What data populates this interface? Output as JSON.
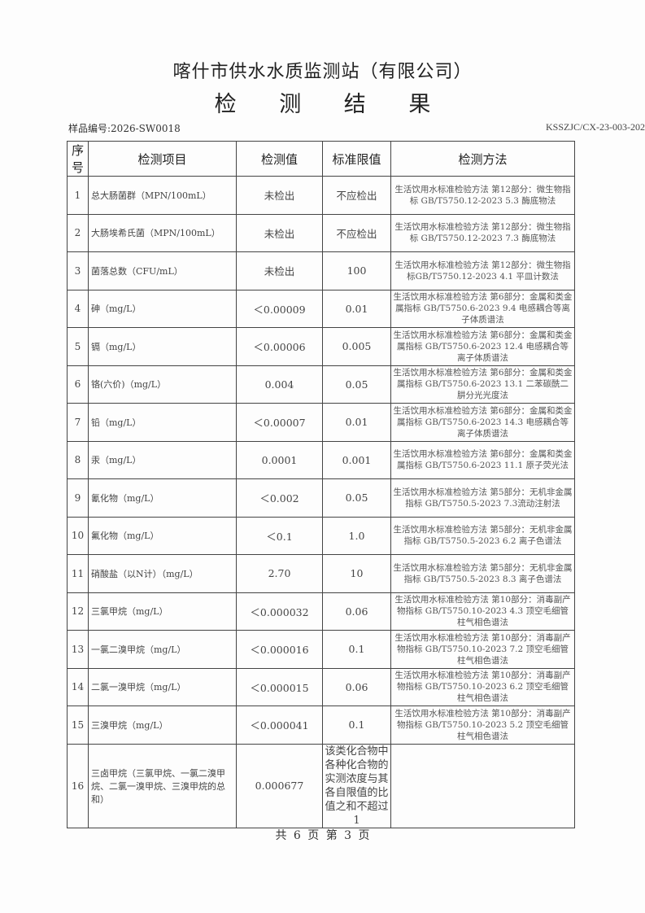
{
  "header": {
    "title": "喀什市供水水质监测站（有限公司）",
    "subtitle": "检 测 结 果",
    "sample_no": "样品编号:2026-SW0018",
    "doc_code": "KSSZJC/CX-23-003-202"
  },
  "table": {
    "columns": [
      "序号",
      "检测项目",
      "检测值",
      "标准限值",
      "检测方法"
    ],
    "rows": [
      {
        "seq": "1",
        "item": "总大肠菌群（MPN/100mL）",
        "value": "未检出",
        "limit": "不应检出",
        "method": "生活饮用水标准检验方法 第12部分：微生物指标 GB/T5750.12-2023 5.3 酶底物法"
      },
      {
        "seq": "2",
        "item": "大肠埃希氏菌（MPN/100mL）",
        "value": "未检出",
        "limit": "不应检出",
        "method": "生活饮用水标准检验方法 第12部分：微生物指标 GB/T5750.12-2023 7.3 酶底物法"
      },
      {
        "seq": "3",
        "item": "菌落总数（CFU/mL）",
        "value": "未检出",
        "limit": "100",
        "method": "生活饮用水标准检验方法 第12部分：微生物指标GB/T5750.12-2023 4.1 平皿计数法"
      },
      {
        "seq": "4",
        "item": "砷（mg/L）",
        "value": "＜0.00009",
        "limit": "0.01",
        "method": "生活饮用水标准检验方法 第6部分：金属和类金属指标 GB/T5750.6-2023 9.4 电感耦合等离子体质谱法"
      },
      {
        "seq": "5",
        "item": "镉（mg/L）",
        "value": "＜0.00006",
        "limit": "0.005",
        "method": "生活饮用水标准检验方法 第6部分：金属和类金属指标 GB/T5750.6-2023 12.4 电感耦合等离子体质谱法"
      },
      {
        "seq": "6",
        "item": "铬(六价)（mg/L）",
        "value": "0.004",
        "limit": "0.05",
        "method": "生活饮用水标准检验方法 第6部分：金属和类金属指标 GB/T5750.6-2023 13.1 二苯碳酰二肼分光光度法"
      },
      {
        "seq": "7",
        "item": "铅（mg/L）",
        "value": "＜0.00007",
        "limit": "0.01",
        "method": "生活饮用水标准检验方法 第6部分：金属和类金属指标 GB/T5750.6-2023 14.3 电感耦合等离子体质谱法"
      },
      {
        "seq": "8",
        "item": "汞（mg/L）",
        "value": "0.0001",
        "limit": "0.001",
        "method": "生活饮用水标准检验方法 第6部分：金属和类金属指标 GB/T5750.6-2023 11.1 原子荧光法"
      },
      {
        "seq": "9",
        "item": "氰化物（mg/L）",
        "value": "＜0.002",
        "limit": "0.05",
        "method": "生活饮用水标准检验方法 第5部分：无机非金属指标 GB/T5750.5-2023 7.3流动注射法"
      },
      {
        "seq": "10",
        "item": "氟化物（mg/L）",
        "value": "＜0.1",
        "limit": "1.0",
        "method": "生活饮用水标准检验方法 第5部分：无机非金属指标 GB/T5750.5-2023 6.2 离子色谱法"
      },
      {
        "seq": "11",
        "item": "硝酸盐（以N计）（mg/L）",
        "value": "2.70",
        "limit": "10",
        "method": "生活饮用水标准检验方法 第5部分：无机非金属指标 GB/T5750.5-2023 8.3 离子色谱法"
      },
      {
        "seq": "12",
        "item": "三氯甲烷（mg/L）",
        "value": "＜0.000032",
        "limit": "0.06",
        "method": "生活饮用水标准检验方法 第10部分：消毒副产物指标 GB/T5750.10-2023 4.3 顶空毛细管柱气相色谱法"
      },
      {
        "seq": "13",
        "item": "一氯二溴甲烷（mg/L）",
        "value": "＜0.000016",
        "limit": "0.1",
        "method": "生活饮用水标准检验方法 第10部分：消毒副产物指标 GB/T5750.10-2023 7.2 顶空毛细管柱气相色谱法"
      },
      {
        "seq": "14",
        "item": "二氯一溴甲烷（mg/L）",
        "value": "＜0.000015",
        "limit": "0.06",
        "method": "生活饮用水标准检验方法 第10部分：消毒副产物指标 GB/T5750.10-2023 6.2 顶空毛细管柱气相色谱法"
      },
      {
        "seq": "15",
        "item": "三溴甲烷（mg/L）",
        "value": "＜0.000041",
        "limit": "0.1",
        "method": "生活饮用水标准检验方法 第10部分：消毒副产物指标 GB/T5750.10-2023 5.2 顶空毛细管柱气相色谱法"
      },
      {
        "seq": "16",
        "item": "三卤甲烷（三氯甲烷、一氯二溴甲烷、二氯一溴甲烷、三溴甲烷的总和）",
        "value": "0.000677",
        "limit": "该类化合物中各种化合物的实测浓度与其各自限值的比值之和不超过1",
        "method": ""
      }
    ]
  },
  "footer": {
    "pages": "共 6 页 第 3 页"
  }
}
